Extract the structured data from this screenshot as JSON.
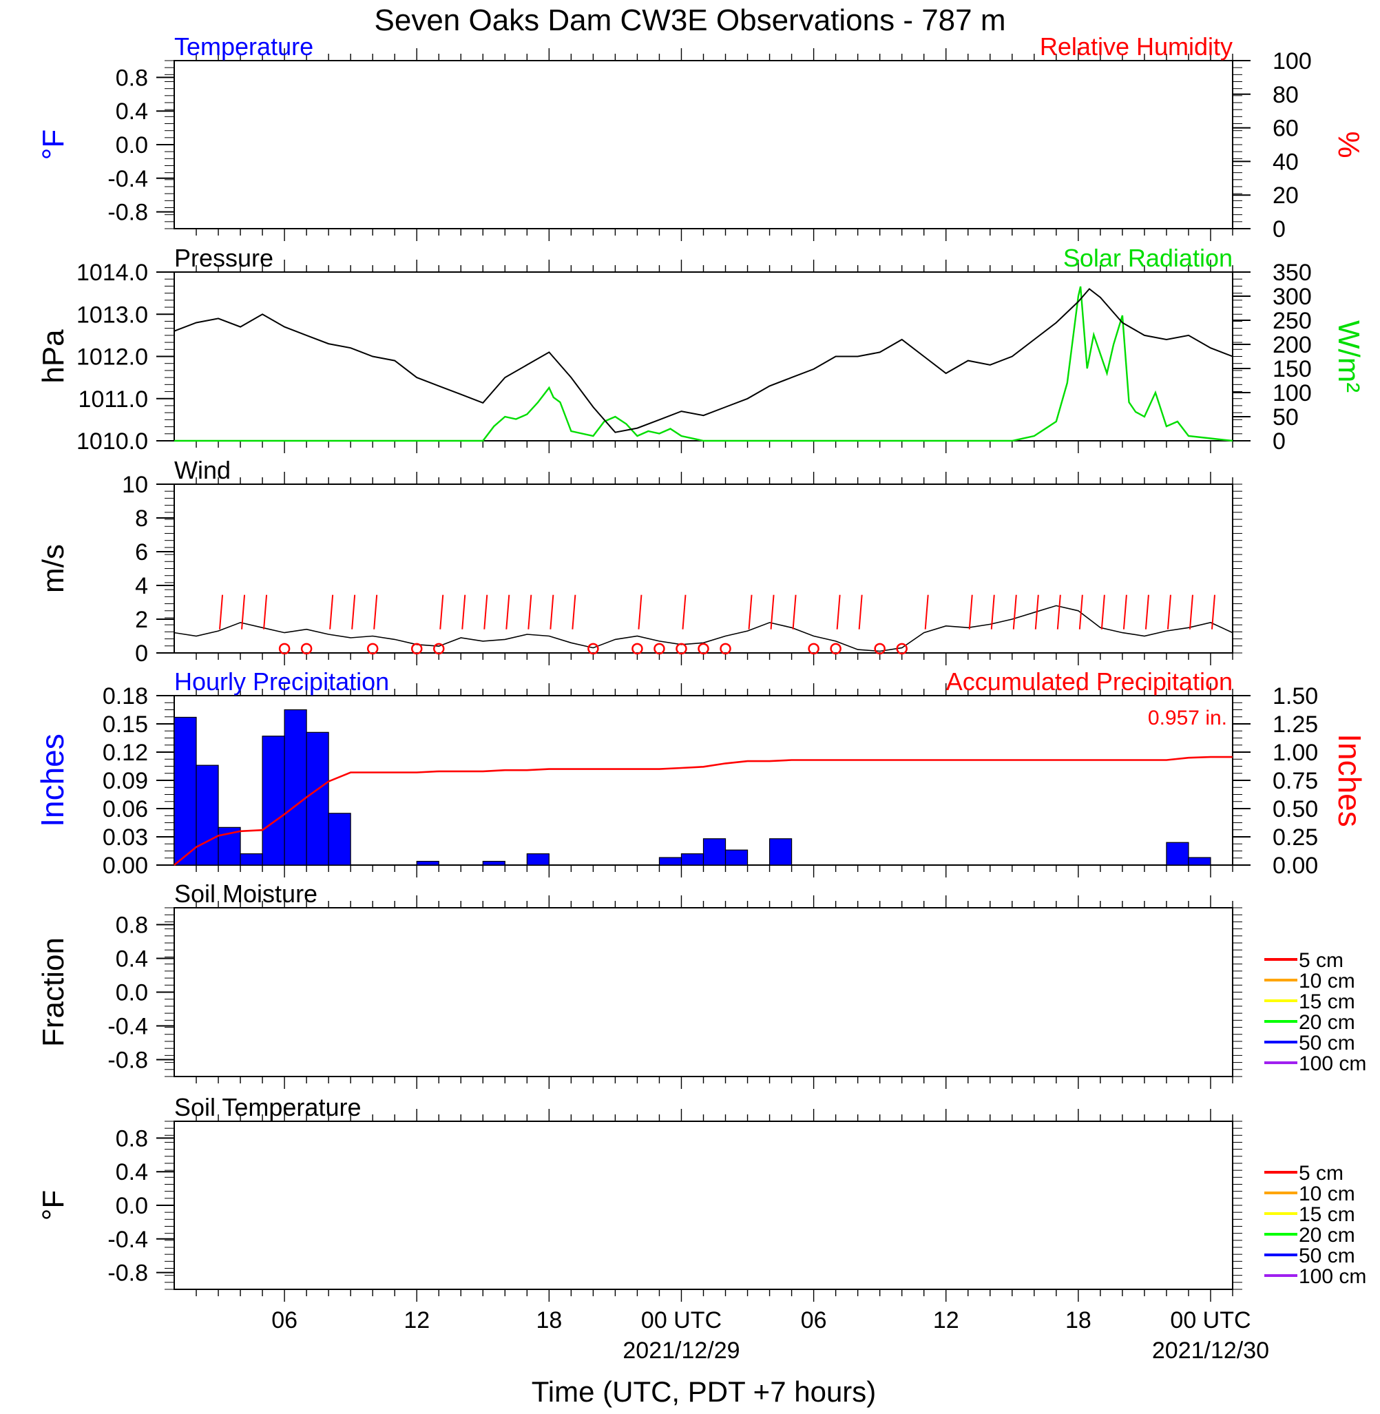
{
  "figure": {
    "title": "Seven Oaks Dam CW3E Observations - 787 m",
    "xlabel": "Time (UTC, PDT +7 hours)",
    "x_ticks": [
      {
        "hour": 6,
        "label": "06",
        "date": ""
      },
      {
        "hour": 12,
        "label": "12",
        "date": ""
      },
      {
        "hour": 18,
        "label": "18",
        "date": ""
      },
      {
        "hour": 24,
        "label": "00 UTC",
        "date": "2021/12/29"
      },
      {
        "hour": 30,
        "label": "06",
        "date": ""
      },
      {
        "hour": 36,
        "label": "12",
        "date": ""
      },
      {
        "hour": 42,
        "label": "18",
        "date": ""
      },
      {
        "hour": 48,
        "label": "00 UTC",
        "date": "2021/12/30"
      }
    ],
    "x_range_hours": [
      1,
      49
    ]
  },
  "colors": {
    "temperature": "#0000ff",
    "humidity": "#ff0000",
    "pressure": "#000000",
    "solar": "#00dd00",
    "wind": "#000000",
    "wind_barb": "#ff0000",
    "hourly_precip": "#0000ff",
    "accum_precip": "#ff0000"
  },
  "chart_data": [
    {
      "id": "temperature_rh",
      "type": "line",
      "title_left": "Temperature",
      "title_right": "Relative Humidity",
      "ylabel_left": "°F",
      "ylabel_right": "%",
      "ylim_left": [
        -1,
        1
      ],
      "yticks_left": [
        "0.8",
        "0.4",
        "0.0",
        "-0.4",
        "-0.8"
      ],
      "ylim_right": [
        0,
        100
      ],
      "yticks_right": [
        "100",
        "80",
        "60",
        "40",
        "20",
        "0"
      ],
      "series": []
    },
    {
      "id": "pressure_solar",
      "type": "line",
      "title_left": "Pressure",
      "title_right": "Solar Radiation",
      "ylabel_left": "hPa",
      "ylabel_right": "W/m²",
      "ylim_left": [
        1010,
        1014
      ],
      "yticks_left": [
        "1014.0",
        "1013.0",
        "1012.0",
        "1011.0",
        "1010.0"
      ],
      "ylim_right": [
        0,
        350
      ],
      "yticks_right": [
        "350",
        "300",
        "250",
        "200",
        "150",
        "100",
        "50",
        "0"
      ],
      "pressure": {
        "x": [
          1,
          2,
          3,
          4,
          5,
          6,
          7,
          8,
          9,
          10,
          11,
          12,
          13,
          14,
          15,
          16,
          17,
          18,
          19,
          20,
          21,
          22,
          23,
          24,
          25,
          26,
          27,
          28,
          29,
          30,
          31,
          32,
          33,
          34,
          35,
          36,
          37,
          38,
          39,
          40,
          41,
          42,
          42.5,
          43,
          44,
          45,
          46,
          47,
          48,
          49
        ],
        "y": [
          1012.6,
          1012.8,
          1012.9,
          1012.7,
          1013.0,
          1012.7,
          1012.5,
          1012.3,
          1012.2,
          1012.0,
          1011.9,
          1011.5,
          1011.3,
          1011.1,
          1010.9,
          1011.5,
          1011.8,
          1012.1,
          1011.5,
          1010.8,
          1010.2,
          1010.3,
          1010.5,
          1010.7,
          1010.6,
          1010.8,
          1011.0,
          1011.3,
          1011.5,
          1011.7,
          1012.0,
          1012.0,
          1012.1,
          1012.4,
          1012.0,
          1011.6,
          1011.9,
          1011.8,
          1012.0,
          1012.4,
          1012.8,
          1013.3,
          1013.6,
          1013.4,
          1012.8,
          1012.5,
          1012.4,
          1012.5,
          1012.2,
          1012.0
        ]
      },
      "solar": {
        "x": [
          1,
          15,
          15.5,
          16,
          16.5,
          17,
          17.5,
          18,
          18.2,
          18.5,
          19,
          20,
          20.5,
          21,
          21.5,
          22,
          22.5,
          23,
          23.5,
          24,
          25,
          39,
          40,
          41,
          41.5,
          42,
          42.1,
          42.4,
          42.7,
          43,
          43.3,
          43.6,
          44,
          44.3,
          44.6,
          45,
          45.5,
          46,
          46.5,
          47,
          48,
          49
        ],
        "y": [
          0,
          0,
          30,
          50,
          45,
          55,
          80,
          110,
          90,
          80,
          20,
          10,
          40,
          50,
          35,
          10,
          20,
          15,
          25,
          10,
          0,
          0,
          10,
          40,
          120,
          300,
          320,
          150,
          220,
          180,
          140,
          200,
          260,
          80,
          60,
          50,
          100,
          30,
          40,
          10,
          5,
          0
        ]
      }
    },
    {
      "id": "wind",
      "type": "line",
      "title_left": "Wind",
      "ylabel_left": "m/s",
      "ylim_left": [
        0,
        10
      ],
      "yticks_left": [
        "10",
        "8",
        "6",
        "4",
        "2",
        "0"
      ],
      "speed": {
        "x": [
          1,
          2,
          3,
          4,
          5,
          6,
          7,
          8,
          9,
          10,
          11,
          12,
          13,
          14,
          15,
          16,
          17,
          18,
          19,
          20,
          21,
          22,
          23,
          24,
          25,
          26,
          27,
          28,
          29,
          30,
          31,
          32,
          33,
          34,
          35,
          36,
          37,
          38,
          39,
          40,
          41,
          42,
          43,
          44,
          45,
          46,
          47,
          48,
          49
        ],
        "y": [
          1.2,
          1.0,
          1.3,
          1.8,
          1.5,
          1.2,
          1.4,
          1.1,
          0.9,
          1.0,
          0.8,
          0.5,
          0.4,
          0.9,
          0.7,
          0.8,
          1.1,
          1.0,
          0.6,
          0.3,
          0.8,
          1.0,
          0.7,
          0.5,
          0.6,
          1.0,
          1.3,
          1.8,
          1.5,
          1.0,
          0.7,
          0.2,
          0.1,
          0.3,
          1.2,
          1.6,
          1.5,
          1.7,
          2.0,
          2.4,
          2.8,
          2.5,
          1.5,
          1.2,
          1.0,
          1.3,
          1.5,
          1.8,
          1.2
        ]
      },
      "barb_hours": [
        3,
        4,
        5,
        8,
        9,
        10,
        13,
        14,
        15,
        16,
        17,
        18,
        19,
        22,
        24,
        27,
        28,
        29,
        31,
        32,
        35,
        37,
        38,
        39,
        40,
        41,
        42,
        43,
        44,
        45,
        46,
        47,
        48
      ],
      "calm_hours": [
        6,
        7,
        10,
        12,
        13,
        20,
        22,
        23,
        24,
        25,
        26,
        30,
        31,
        33,
        34
      ]
    },
    {
      "id": "precipitation",
      "type": "bar",
      "title_left": "Hourly Precipitation",
      "title_right": "Accumulated Precipitation",
      "annotation": "0.957 in.",
      "ylabel_left": "Inches",
      "ylabel_right": "Inches",
      "ylim_left": [
        0,
        0.18
      ],
      "yticks_left": [
        "0.18",
        "0.15",
        "0.12",
        "0.09",
        "0.06",
        "0.03",
        "0.00"
      ],
      "ylim_right": [
        0,
        1.5
      ],
      "yticks_right": [
        "1.50",
        "1.25",
        "1.00",
        "0.75",
        "0.50",
        "0.25",
        "0.00"
      ],
      "hourly": {
        "bar_start_hours": [
          1,
          2,
          3,
          4,
          5,
          6,
          7,
          8,
          12,
          15,
          17,
          23,
          24,
          25,
          26,
          28,
          46,
          47
        ],
        "values": [
          0.157,
          0.106,
          0.04,
          0.012,
          0.137,
          0.165,
          0.141,
          0.055,
          0.004,
          0.004,
          0.012,
          0.008,
          0.012,
          0.028,
          0.016,
          0.028,
          0.024,
          0.008
        ]
      },
      "accumulated": {
        "x": [
          1,
          2,
          3,
          4,
          5,
          6,
          7,
          8,
          9,
          12,
          13,
          15,
          16,
          17,
          18,
          23,
          24,
          25,
          26,
          27,
          28,
          29,
          46,
          47,
          48,
          49
        ],
        "y": [
          0.0,
          0.16,
          0.26,
          0.3,
          0.31,
          0.45,
          0.6,
          0.74,
          0.82,
          0.82,
          0.83,
          0.83,
          0.84,
          0.84,
          0.85,
          0.85,
          0.86,
          0.87,
          0.9,
          0.92,
          0.92,
          0.93,
          0.93,
          0.95,
          0.957,
          0.957
        ]
      }
    },
    {
      "id": "soil_moisture",
      "type": "line",
      "title_left": "Soil Moisture",
      "ylabel_left": "Fraction",
      "ylim_left": [
        -1,
        1
      ],
      "yticks_left": [
        "0.8",
        "0.4",
        "0.0",
        "-0.4",
        "-0.8"
      ],
      "legend": [
        {
          "label": "5 cm",
          "color": "#ff0000"
        },
        {
          "label": "10 cm",
          "color": "#ffa500"
        },
        {
          "label": "15 cm",
          "color": "#ffff00"
        },
        {
          "label": "20 cm",
          "color": "#00ff00"
        },
        {
          "label": "50 cm",
          "color": "#0000ff"
        },
        {
          "label": "100 cm",
          "color": "#a020f0"
        }
      ],
      "series": []
    },
    {
      "id": "soil_temperature",
      "type": "line",
      "title_left": "Soil Temperature",
      "ylabel_left": "°F",
      "ylim_left": [
        -1,
        1
      ],
      "yticks_left": [
        "0.8",
        "0.4",
        "0.0",
        "-0.4",
        "-0.8"
      ],
      "legend": [
        {
          "label": "5 cm",
          "color": "#ff0000"
        },
        {
          "label": "10 cm",
          "color": "#ffa500"
        },
        {
          "label": "15 cm",
          "color": "#ffff00"
        },
        {
          "label": "20 cm",
          "color": "#00ff00"
        },
        {
          "label": "50 cm",
          "color": "#0000ff"
        },
        {
          "label": "100 cm",
          "color": "#a020f0"
        }
      ],
      "series": []
    }
  ]
}
